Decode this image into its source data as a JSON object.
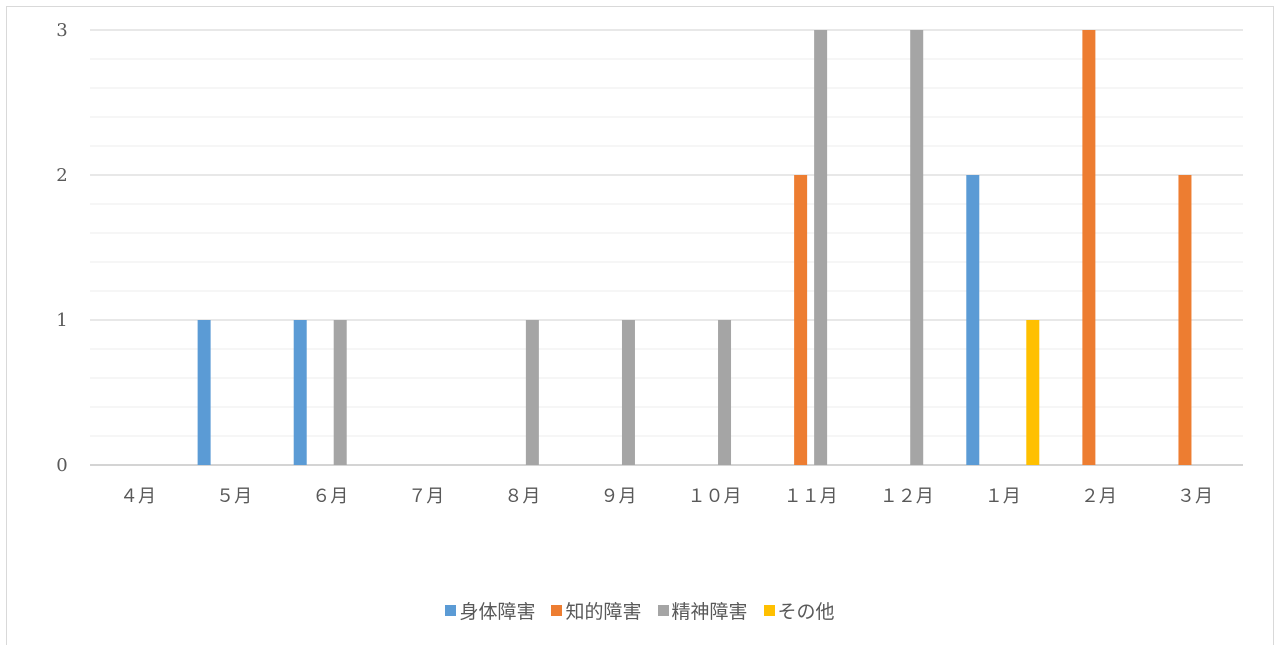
{
  "chart_data": {
    "type": "bar",
    "title": "",
    "xlabel": "",
    "ylabel": "",
    "categories": [
      "４月",
      "５月",
      "６月",
      "７月",
      "８月",
      "９月",
      "１０月",
      "１１月",
      "１２月",
      "１月",
      "２月",
      "３月"
    ],
    "series": [
      {
        "name": "身体障害",
        "color": "#5b9bd5",
        "values": [
          0,
          1,
          1,
          0,
          0,
          0,
          0,
          0,
          0,
          2,
          0,
          0
        ]
      },
      {
        "name": "知的障害",
        "color": "#ed7d31",
        "values": [
          0,
          0,
          0,
          0,
          0,
          0,
          0,
          2,
          0,
          0,
          3,
          2
        ]
      },
      {
        "name": "精神障害",
        "color": "#a5a5a5",
        "values": [
          0,
          0,
          1,
          0,
          1,
          1,
          1,
          3,
          3,
          0,
          0,
          0
        ]
      },
      {
        "name": "その他",
        "color": "#ffc000",
        "values": [
          0,
          0,
          0,
          0,
          0,
          0,
          0,
          0,
          0,
          1,
          0,
          0
        ]
      }
    ],
    "ylim": [
      0,
      3
    ],
    "yticks": [
      0,
      1,
      2,
      3
    ],
    "grid": true,
    "legend_position": "bottom"
  }
}
